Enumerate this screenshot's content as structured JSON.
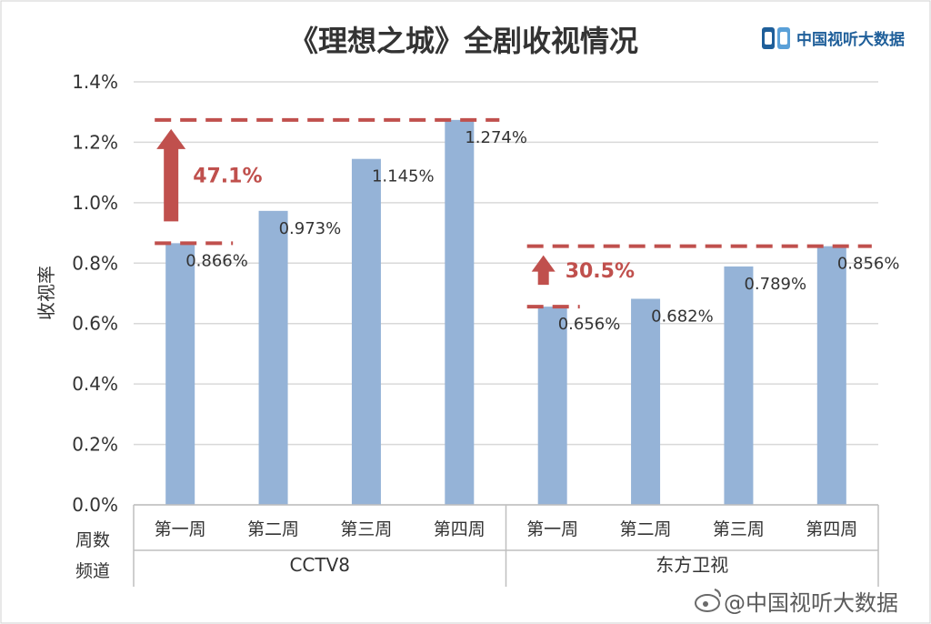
{
  "header": {
    "title": "《理想之城》全剧收视情况",
    "logo_text": "中国视听大数据"
  },
  "colors": {
    "bar": "#95b3d7",
    "accent": "#c0504d",
    "grid": "#d9d9d9"
  },
  "row_labels": {
    "week": "周数",
    "channel": "频道"
  },
  "watermark": "@中国视听大数据",
  "watermark_icon": "weibo-icon",
  "chart_data": {
    "type": "bar",
    "ylabel": "收视率",
    "ylim": [
      0,
      1.4
    ],
    "yticks": [
      "0.0%",
      "0.2%",
      "0.4%",
      "0.6%",
      "0.8%",
      "1.0%",
      "1.2%",
      "1.4%"
    ],
    "grid": true,
    "groups": [
      {
        "name": "CCTV8",
        "categories": [
          "第一周",
          "第二周",
          "第三周",
          "第四周"
        ],
        "values": [
          0.866,
          0.973,
          1.145,
          1.274
        ],
        "labels": [
          "0.866%",
          "0.973%",
          "1.145%",
          "1.274%"
        ],
        "growth": "47.1%"
      },
      {
        "name": "东方卫视",
        "categories": [
          "第一周",
          "第二周",
          "第三周",
          "第四周"
        ],
        "values": [
          0.656,
          0.682,
          0.789,
          0.856
        ],
        "labels": [
          "0.656%",
          "0.682%",
          "0.789%",
          "0.856%"
        ],
        "growth": "30.5%"
      }
    ]
  }
}
